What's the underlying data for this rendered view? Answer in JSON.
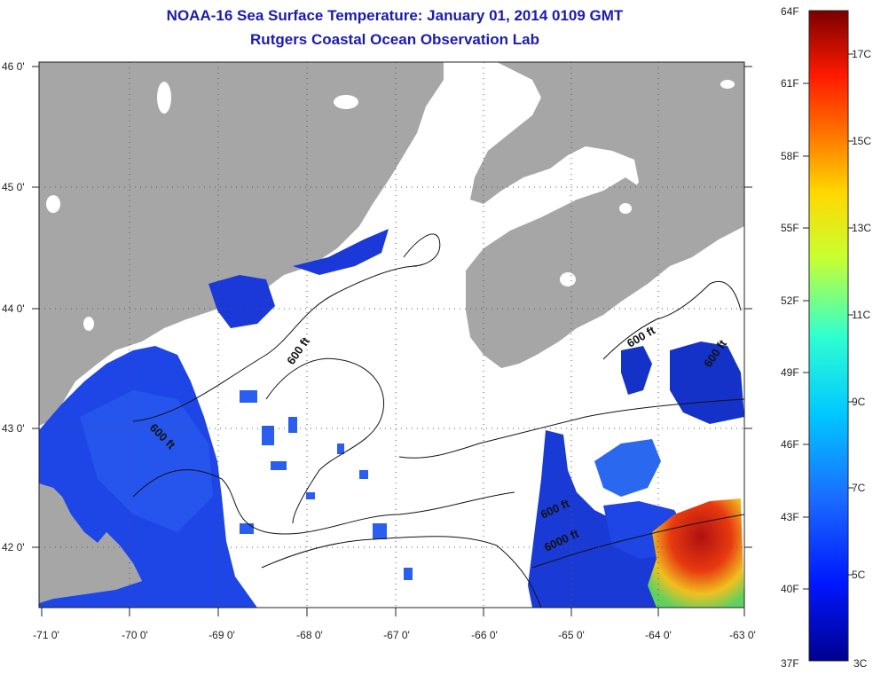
{
  "title": "NOAA-16 Sea Surface Temperature:  January 01, 2014 0109 GMT",
  "subtitle": "Rutgers Coastal Ocean Observation Lab",
  "axes": {
    "x_ticks": [
      "-71 0'",
      "-70 0'",
      "-69 0'",
      "-68 0'",
      "-67 0'",
      "-66 0'",
      "-65 0'",
      "-64 0'",
      "-63 0'"
    ],
    "y_ticks": [
      "46 0'",
      "45 0'",
      "44 0'",
      "43 0'",
      "42 0'"
    ]
  },
  "depth_labels": [
    "600 ft",
    "600 ft",
    "600 ft",
    "600 ft",
    "600 ft",
    "6000 ft"
  ],
  "colorbar": {
    "fahrenheit": [
      "64F",
      "61F",
      "58F",
      "55F",
      "52F",
      "49F",
      "46F",
      "43F",
      "40F",
      "37F"
    ],
    "celsius": [
      "17C",
      "15C",
      "13C",
      "11C",
      "9C",
      "7C",
      "5C",
      "3C"
    ]
  },
  "colors": {
    "land": "#a6a6a6",
    "no_data": "#ffffff",
    "title": "#1c1ca8",
    "sst_cold": "#1e3cdc",
    "sst_warm": "#b21a10"
  }
}
